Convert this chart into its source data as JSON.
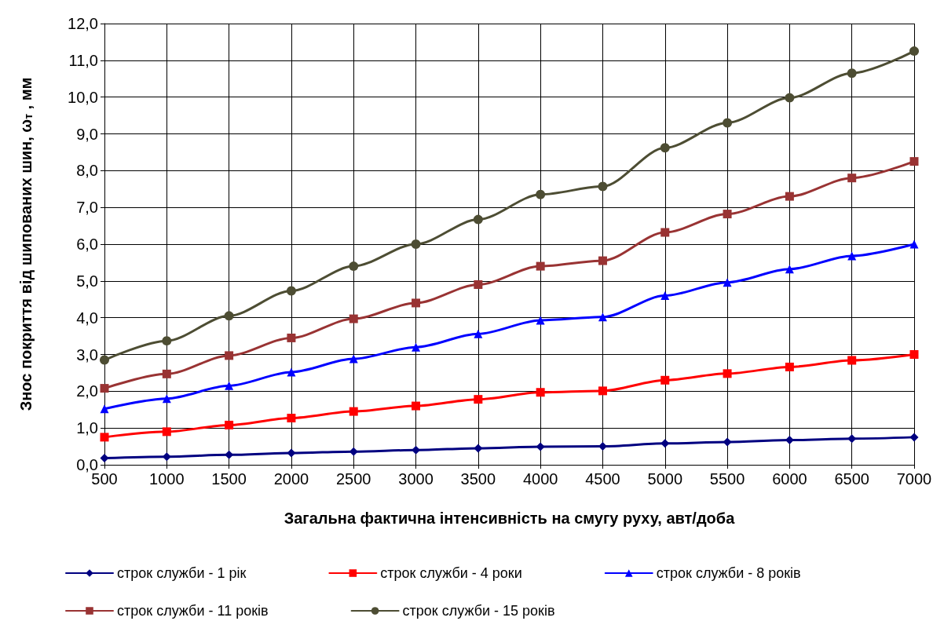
{
  "chart_data": {
    "type": "line",
    "xlabel": "Загальна фактична інтенсивність на смугу руху, авт/доба",
    "ylabel": "Знос покриття від шипованих шин, ω$_{т}$ , мм",
    "x": [
      500,
      1000,
      1500,
      2000,
      2500,
      3000,
      3500,
      4000,
      4500,
      5000,
      5500,
      6000,
      6500,
      7000
    ],
    "xlim": [
      500,
      7000
    ],
    "xticks": [
      500,
      1000,
      1500,
      2000,
      2500,
      3000,
      3500,
      4000,
      4500,
      5000,
      5500,
      6000,
      6500,
      7000
    ],
    "ylim": [
      0,
      12
    ],
    "yticks": [
      {
        "value": 0,
        "label": "0,0"
      },
      {
        "value": 1,
        "label": "1,0"
      },
      {
        "value": 2,
        "label": "2,0"
      },
      {
        "value": 3,
        "label": "3,0"
      },
      {
        "value": 4,
        "label": "4,0"
      },
      {
        "value": 5,
        "label": "5,0"
      },
      {
        "value": 6,
        "label": "6,0"
      },
      {
        "value": 7,
        "label": "7,0"
      },
      {
        "value": 8,
        "label": "8,0"
      },
      {
        "value": 9,
        "label": "9,0"
      },
      {
        "value": 10,
        "label": "10,0"
      },
      {
        "value": 11,
        "label": "11,0"
      },
      {
        "value": 12,
        "label": "12,0"
      }
    ],
    "grid": true,
    "legend": "bottom",
    "line_style": "solid",
    "series": [
      {
        "name": "строк служби - 1 рік",
        "color": "#000080",
        "marker": "diamond",
        "values": [
          0.18,
          0.22,
          0.27,
          0.32,
          0.36,
          0.4,
          0.45,
          0.49,
          0.5,
          0.58,
          0.62,
          0.67,
          0.71,
          0.75
        ]
      },
      {
        "name": "строк служби - 4 роки",
        "color": "#ff0000",
        "marker": "square",
        "values": [
          0.75,
          0.9,
          1.08,
          1.27,
          1.45,
          1.6,
          1.78,
          1.97,
          2.01,
          2.3,
          2.48,
          2.66,
          2.84,
          3.0
        ]
      },
      {
        "name": "строк служби - 8 років",
        "color": "#0000ff",
        "marker": "triangle",
        "values": [
          1.52,
          1.8,
          2.15,
          2.52,
          2.88,
          3.2,
          3.56,
          3.93,
          4.02,
          4.6,
          4.96,
          5.32,
          5.68,
          6.0
        ]
      },
      {
        "name": "строк служби - 11 років",
        "color": "#993333",
        "marker": "square",
        "values": [
          2.08,
          2.47,
          2.97,
          3.45,
          3.97,
          4.4,
          4.9,
          5.4,
          5.55,
          6.32,
          6.82,
          7.3,
          7.8,
          8.25
        ]
      },
      {
        "name": "строк служби - 15 років",
        "color": "#4d4d33",
        "marker": "circle",
        "values": [
          2.85,
          3.37,
          4.05,
          4.73,
          5.4,
          6.0,
          6.67,
          7.35,
          7.57,
          8.62,
          9.3,
          9.98,
          10.65,
          11.25
        ]
      }
    ]
  }
}
